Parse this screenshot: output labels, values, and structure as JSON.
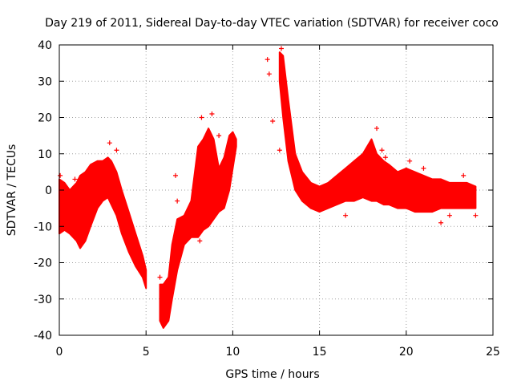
{
  "chart_data": {
    "type": "scatter",
    "title": "Day 219 of 2011, Sidereal Day-to-day VTEC variation (SDTVAR) for receiver coco",
    "xlabel": "GPS time / hours",
    "ylabel": "SDTVAR / TECUs",
    "xlim": [
      0,
      25
    ],
    "ylim": [
      -40,
      40
    ],
    "xticks": [
      0,
      5,
      10,
      15,
      20,
      25
    ],
    "yticks": [
      -40,
      -30,
      -20,
      -10,
      0,
      10,
      20,
      30,
      40
    ],
    "xtick_labels": [
      "0",
      "5",
      "10",
      "15",
      "20",
      "25"
    ],
    "ytick_labels": [
      "-40",
      "-30",
      "-20",
      "-10",
      "0",
      "10",
      "20",
      "30",
      "40"
    ],
    "grid": true,
    "marker": "+",
    "series_color": "#ff0000",
    "envelope": {
      "name": "SDTVAR",
      "x": [
        0.0,
        0.3,
        0.6,
        1.0,
        1.2,
        1.5,
        1.8,
        2.2,
        2.5,
        2.8,
        3.0,
        3.3,
        3.6,
        4.0,
        4.4,
        4.8,
        5.0,
        5.1,
        5.5,
        5.8,
        6.0,
        6.3,
        6.5,
        6.8,
        7.2,
        7.6,
        8.0,
        8.3,
        8.6,
        8.9,
        9.2,
        9.5,
        9.8,
        10.0,
        10.2,
        10.4,
        12.5,
        12.7,
        12.9,
        13.2,
        13.6,
        14.0,
        14.5,
        15.0,
        15.5,
        16.0,
        16.5,
        17.0,
        17.5,
        18.0,
        18.3,
        18.7,
        19.0,
        19.5,
        20.0,
        20.5,
        21.0,
        21.5,
        22.0,
        22.5,
        23.0,
        23.5,
        24.0
      ],
      "upper": [
        3,
        2,
        0,
        2,
        4,
        5,
        7,
        8,
        8,
        9,
        8,
        5,
        0,
        -6,
        -12,
        -18,
        -22,
        null,
        null,
        -26,
        -26,
        -24,
        -15,
        -8,
        -7,
        -3,
        12,
        14,
        17,
        14,
        6,
        9,
        15,
        16,
        14,
        null,
        null,
        38,
        37,
        25,
        10,
        5,
        2,
        1,
        2,
        4,
        6,
        8,
        10,
        14,
        10,
        8,
        7,
        5,
        6,
        5,
        4,
        3,
        3,
        2,
        2,
        2,
        1
      ],
      "lower": [
        -12,
        -11,
        -12,
        -14,
        -16,
        -14,
        -10,
        -5,
        -3,
        -2,
        -4,
        -7,
        -12,
        -17,
        -21,
        -24,
        -27,
        null,
        null,
        -36,
        -38,
        -36,
        -30,
        -22,
        -15,
        -13,
        -13,
        -11,
        -10,
        -8,
        -6,
        -5,
        0,
        6,
        12,
        null,
        null,
        30,
        20,
        8,
        0,
        -3,
        -5,
        -6,
        -5,
        -4,
        -3,
        -3,
        -2,
        -3,
        -3,
        -4,
        -4,
        -5,
        -5,
        -6,
        -6,
        -6,
        -5,
        -5,
        -5,
        -5,
        -5
      ]
    },
    "scatter_points": [
      {
        "x": 0.05,
        "y": 4
      },
      {
        "x": 0.9,
        "y": 3
      },
      {
        "x": 2.9,
        "y": 13
      },
      {
        "x": 3.3,
        "y": 11
      },
      {
        "x": 5.8,
        "y": -24
      },
      {
        "x": 6.0,
        "y": -37
      },
      {
        "x": 6.7,
        "y": 4
      },
      {
        "x": 6.8,
        "y": -3
      },
      {
        "x": 7.9,
        "y": -8
      },
      {
        "x": 8.1,
        "y": -14
      },
      {
        "x": 8.2,
        "y": 20
      },
      {
        "x": 8.8,
        "y": 21
      },
      {
        "x": 9.2,
        "y": 15
      },
      {
        "x": 12.0,
        "y": 36
      },
      {
        "x": 12.1,
        "y": 32
      },
      {
        "x": 12.3,
        "y": 19
      },
      {
        "x": 12.7,
        "y": 11
      },
      {
        "x": 12.8,
        "y": 39
      },
      {
        "x": 16.5,
        "y": -7
      },
      {
        "x": 18.0,
        "y": 12
      },
      {
        "x": 18.3,
        "y": 17
      },
      {
        "x": 18.6,
        "y": 11
      },
      {
        "x": 18.8,
        "y": 9
      },
      {
        "x": 20.2,
        "y": 8
      },
      {
        "x": 21.0,
        "y": 6
      },
      {
        "x": 22.0,
        "y": -9
      },
      {
        "x": 22.5,
        "y": -7
      },
      {
        "x": 23.3,
        "y": 4
      },
      {
        "x": 24.0,
        "y": -7
      }
    ]
  }
}
